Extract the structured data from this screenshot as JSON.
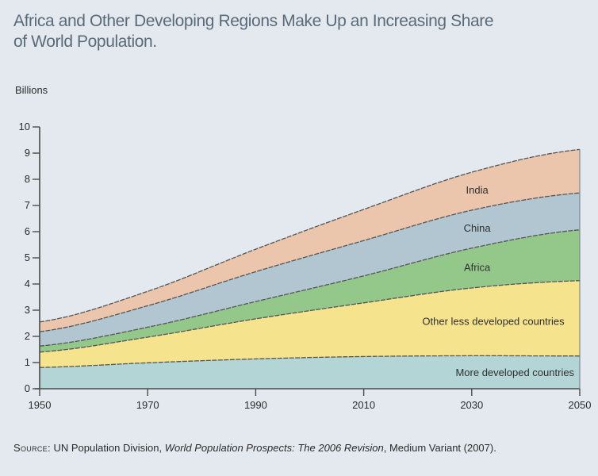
{
  "title": "Africa and Other Developing Regions Make Up an Increasing Share of World Population.",
  "title_lines": [
    "Africa and Other Developing Regions Make Up an Increasing Share",
    "of World Population."
  ],
  "source": {
    "label": "Source:",
    "text_before": " UN Population Division, ",
    "italic": "World Population Prospects: The 2006 Revision",
    "text_after": ", Medium Variant (2007)."
  },
  "chart_data": {
    "type": "area",
    "stacked": true,
    "title": "Africa and Other Developing Regions Make Up an Increasing Share of World Population.",
    "ylabel": "Billions",
    "xlabel": "",
    "xlim": [
      1950,
      2050
    ],
    "ylim": [
      0,
      10
    ],
    "x_ticks": [
      1950,
      1970,
      1990,
      2010,
      2030,
      2050
    ],
    "y_ticks": [
      0,
      1,
      2,
      3,
      4,
      5,
      6,
      7,
      8,
      9,
      10
    ],
    "grid": false,
    "legend": "inline-labels",
    "x": [
      1950,
      1970,
      1990,
      2010,
      2030,
      2050
    ],
    "series": [
      {
        "name": "More developed countries",
        "color": "#b4d5d6",
        "values": [
          0.81,
          0.99,
          1.14,
          1.23,
          1.26,
          1.25
        ]
      },
      {
        "name": "Other less developed countries",
        "color": "#f6e38e",
        "values": [
          0.59,
          0.98,
          1.53,
          2.05,
          2.59,
          2.88
        ]
      },
      {
        "name": "Africa",
        "color": "#94c88a",
        "values": [
          0.23,
          0.38,
          0.66,
          1.03,
          1.52,
          1.94
        ]
      },
      {
        "name": "China",
        "color": "#b2c6d2",
        "values": [
          0.55,
          0.82,
          1.14,
          1.35,
          1.45,
          1.41
        ]
      },
      {
        "name": "India",
        "color": "#ebc6ac",
        "values": [
          0.37,
          0.55,
          0.86,
          1.19,
          1.45,
          1.66
        ]
      }
    ],
    "series_totals_top": [
      2.55,
      3.72,
      5.33,
      6.85,
      8.27,
      9.14
    ]
  },
  "colors": {
    "background": "#e3e9ef",
    "title": "#5a6a78",
    "axis": "#4a4a4a",
    "boundary": "#555555"
  }
}
